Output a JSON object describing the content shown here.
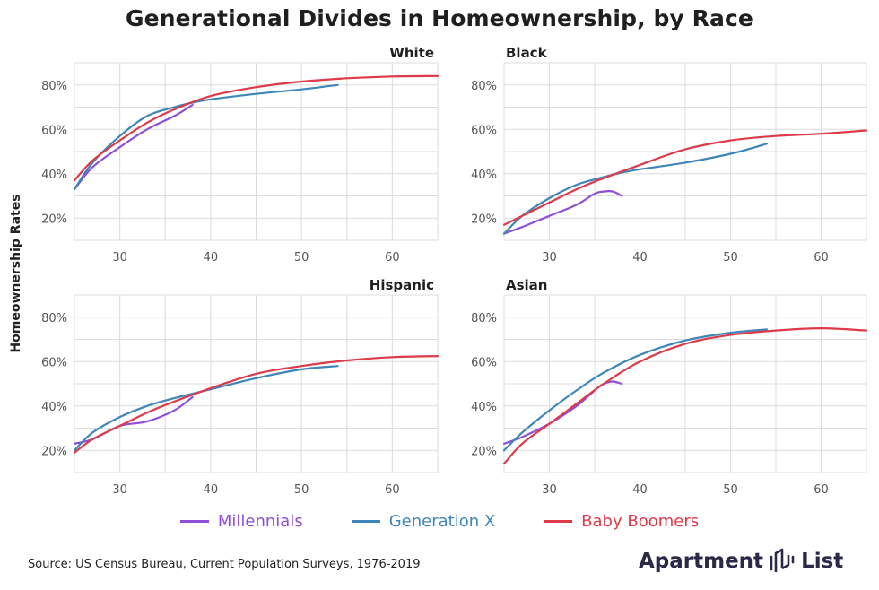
{
  "title": "Generational Divides in Homeownership, by Race",
  "ylabel": "Homeownership Rates",
  "source": "Source: US Census Bureau, Current Population Surveys, 1976-2019",
  "brand": {
    "name_left": "Apartment",
    "name_right": "List",
    "logo_icon": "apartment-list-logo-icon"
  },
  "colors": {
    "Millennials": "#8c4fd6",
    "Generation X": "#3f86b8",
    "Baby Boomers": "#dd3a4a"
  },
  "legend": [
    "Millennials",
    "Generation X",
    "Baby Boomers"
  ],
  "chart_data": [
    {
      "type": "line",
      "title": "White",
      "xlim": [
        25,
        65
      ],
      "ylim": [
        10,
        90
      ],
      "x_ticks": [
        30,
        40,
        50,
        60
      ],
      "y_ticks": [
        20,
        40,
        60,
        80
      ],
      "y_tick_format": "{}%",
      "grid": true,
      "series": [
        {
          "name": "Millennials",
          "x": [
            25,
            27,
            30,
            33,
            36,
            38
          ],
          "y": [
            33,
            43,
            52,
            60,
            66,
            71
          ]
        },
        {
          "name": "Generation X",
          "x": [
            25,
            27,
            30,
            33,
            36,
            38,
            40,
            45,
            50,
            54
          ],
          "y": [
            33,
            45,
            57,
            66,
            70,
            72,
            73.5,
            76,
            78,
            80
          ]
        },
        {
          "name": "Baby Boomers",
          "x": [
            25,
            27,
            30,
            33,
            36,
            40,
            45,
            50,
            55,
            60,
            65
          ],
          "y": [
            37,
            46,
            55,
            63,
            69,
            75,
            79,
            81.5,
            83,
            83.8,
            84
          ]
        }
      ]
    },
    {
      "type": "line",
      "title": "Black",
      "xlim": [
        25,
        65
      ],
      "ylim": [
        10,
        90
      ],
      "x_ticks": [
        30,
        40,
        50,
        60
      ],
      "y_ticks": [
        20,
        40,
        60,
        80
      ],
      "y_tick_format": "{}%",
      "grid": true,
      "series": [
        {
          "name": "Millennials",
          "x": [
            25,
            27,
            30,
            33,
            35,
            36,
            37,
            38
          ],
          "y": [
            13,
            16,
            21,
            26,
            31,
            32,
            32,
            30
          ]
        },
        {
          "name": "Generation X",
          "x": [
            25,
            27,
            30,
            33,
            36,
            38,
            40,
            45,
            50,
            54
          ],
          "y": [
            13,
            21,
            29,
            35,
            38.5,
            40.5,
            42,
            45,
            49,
            53.5
          ]
        },
        {
          "name": "Baby Boomers",
          "x": [
            25,
            27,
            30,
            33,
            36,
            40,
            45,
            50,
            55,
            60,
            65
          ],
          "y": [
            17,
            21,
            27,
            33,
            38,
            44,
            51,
            55,
            57,
            58,
            59.5
          ]
        }
      ]
    },
    {
      "type": "line",
      "title": "Hispanic",
      "xlim": [
        25,
        65
      ],
      "ylim": [
        10,
        90
      ],
      "x_ticks": [
        30,
        40,
        50,
        60
      ],
      "y_ticks": [
        20,
        40,
        60,
        80
      ],
      "y_tick_format": "{}%",
      "grid": true,
      "series": [
        {
          "name": "Millennials",
          "x": [
            25,
            27,
            30,
            33,
            36,
            38
          ],
          "y": [
            23,
            25,
            31,
            33,
            38,
            44
          ]
        },
        {
          "name": "Generation X",
          "x": [
            25,
            27,
            30,
            33,
            36,
            38,
            40,
            45,
            50,
            54
          ],
          "y": [
            20,
            28,
            35,
            40,
            43.5,
            45.5,
            47.5,
            52.5,
            56.5,
            58
          ]
        },
        {
          "name": "Baby Boomers",
          "x": [
            25,
            27,
            30,
            33,
            36,
            40,
            45,
            50,
            55,
            60,
            65
          ],
          "y": [
            19,
            25,
            31,
            37,
            42,
            48,
            54.5,
            58,
            60.5,
            62,
            62.5
          ]
        }
      ]
    },
    {
      "type": "line",
      "title": "Asian",
      "xlim": [
        25,
        65
      ],
      "ylim": [
        10,
        90
      ],
      "x_ticks": [
        30,
        40,
        50,
        60
      ],
      "y_ticks": [
        20,
        40,
        60,
        80
      ],
      "y_tick_format": "{}%",
      "grid": true,
      "series": [
        {
          "name": "Millennials",
          "x": [
            25,
            27,
            30,
            33,
            35,
            36,
            37,
            38
          ],
          "y": [
            23,
            26,
            32,
            40,
            47,
            50,
            51,
            50
          ]
        },
        {
          "name": "Generation X",
          "x": [
            25,
            27,
            30,
            33,
            36,
            40,
            45,
            50,
            54
          ],
          "y": [
            20,
            28,
            38,
            47,
            55,
            63,
            69.5,
            73,
            74.5
          ]
        },
        {
          "name": "Baby Boomers",
          "x": [
            25,
            27,
            30,
            33,
            36,
            40,
            45,
            50,
            55,
            60,
            65
          ],
          "y": [
            14,
            23,
            32,
            41,
            50,
            60,
            68,
            72,
            74,
            75,
            74
          ]
        }
      ]
    }
  ]
}
